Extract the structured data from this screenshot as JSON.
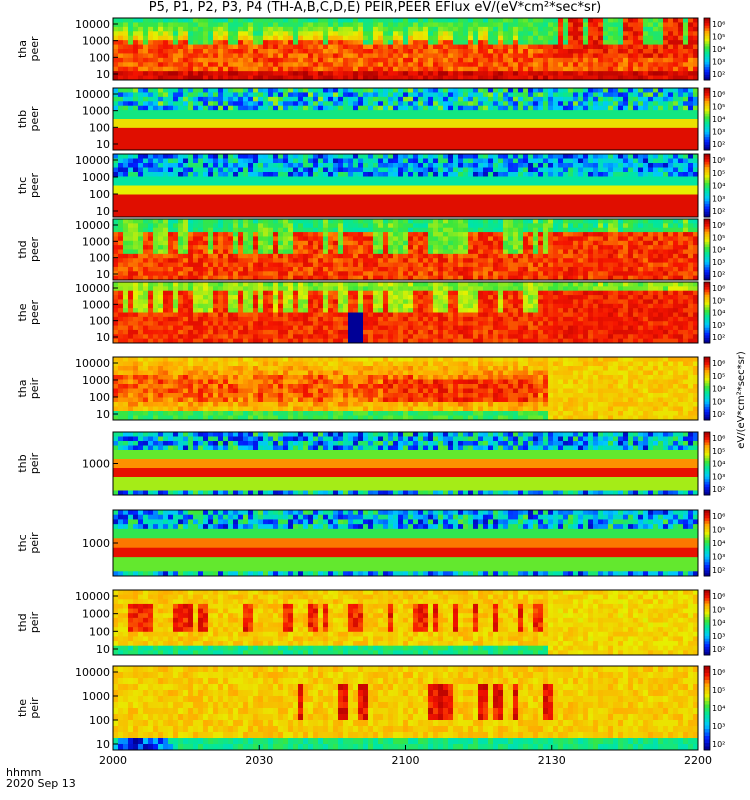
{
  "chart_data": {
    "type": "heatmap",
    "title": "P5, P1, P2, P3, P4 (TH-A,B,C,D,E) PEIR,PEER EFlux eV/(eV*cm²*sec*sr)",
    "x_label": "hhmm",
    "x_sublabel": "2020 Sep 13",
    "x_ticks": [
      "2000",
      "2030",
      "2100",
      "2130",
      "2200"
    ],
    "x_range": [
      "20:00",
      "22:00"
    ],
    "colorbar_ticks": [
      "10²",
      "10³",
      "10⁴",
      "10⁵",
      "10⁶"
    ],
    "colorbar_label": "eV/(eV*cm²*sec*sr)",
    "y_scale": "log",
    "panels": [
      {
        "probe": "tha",
        "species": "peer",
        "y_ticks": [
          "10000",
          "1000",
          "100",
          "10"
        ],
        "pattern": "tha_peer"
      },
      {
        "probe": "thb",
        "species": "peer",
        "y_ticks": [
          "10000",
          "1000",
          "100",
          "10"
        ],
        "pattern": "thb_peer"
      },
      {
        "probe": "thc",
        "species": "peer",
        "y_ticks": [
          "10000",
          "1000",
          "100",
          "10"
        ],
        "pattern": "thc_peer"
      },
      {
        "probe": "thd",
        "species": "peer",
        "y_ticks": [
          "10000",
          "1000",
          "100",
          "10"
        ],
        "pattern": "thd_peer"
      },
      {
        "probe": "the",
        "species": "peer",
        "y_ticks": [
          "10000",
          "1000",
          "100",
          "10"
        ],
        "pattern": "the_peer"
      },
      {
        "probe": "tha",
        "species": "peir",
        "y_ticks": [
          "10000",
          "1000",
          "100",
          "10"
        ],
        "pattern": "tha_peir"
      },
      {
        "probe": "thb",
        "species": "peir",
        "y_ticks": [
          "1000"
        ],
        "pattern": "thb_peir"
      },
      {
        "probe": "thc",
        "species": "peir",
        "y_ticks": [
          "1000"
        ],
        "pattern": "thc_peir"
      },
      {
        "probe": "thd",
        "species": "peir",
        "y_ticks": [
          "10000",
          "1000",
          "100",
          "10"
        ],
        "pattern": "thd_peir"
      },
      {
        "probe": "the",
        "species": "peir",
        "y_ticks": [
          "10000",
          "1000",
          "100",
          "10"
        ],
        "pattern": "the_peir"
      }
    ]
  }
}
